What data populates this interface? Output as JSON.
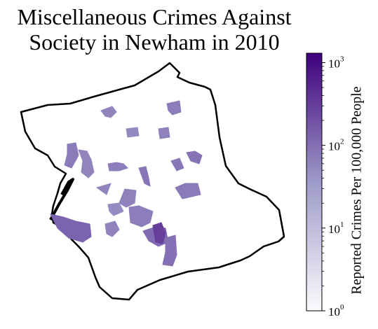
{
  "title": {
    "line1": "Miscellaneous Crimes Against",
    "line2": "Society in Newham in 2010"
  },
  "colorbar": {
    "label": "Reported Crimes Per 100,000 People",
    "scale": "log",
    "range": [
      1,
      1300
    ],
    "colors": {
      "low": "#fcfbfd",
      "mid": "#9e9ac8",
      "high": "#3f007d"
    },
    "ticks": [
      {
        "base": "10",
        "exp": "0",
        "value": 1
      },
      {
        "base": "10",
        "exp": "1",
        "value": 10
      },
      {
        "base": "10",
        "exp": "2",
        "value": 100
      },
      {
        "base": "10",
        "exp": "3",
        "value": 1000
      }
    ]
  },
  "regions": [
    {
      "value": 60
    },
    {
      "value": 70
    },
    {
      "value": 55
    },
    {
      "value": 65
    },
    {
      "value": 75
    },
    {
      "value": 60
    },
    {
      "value": 70
    },
    {
      "value": 85
    },
    {
      "value": 80
    },
    {
      "value": 90
    },
    {
      "value": 60
    },
    {
      "value": 65
    },
    {
      "value": 50
    },
    {
      "value": 70
    },
    {
      "value": 75
    },
    {
      "value": 130
    },
    {
      "value": 60
    },
    {
      "value": 110
    },
    {
      "value": 300
    },
    {
      "value": 95
    }
  ]
}
